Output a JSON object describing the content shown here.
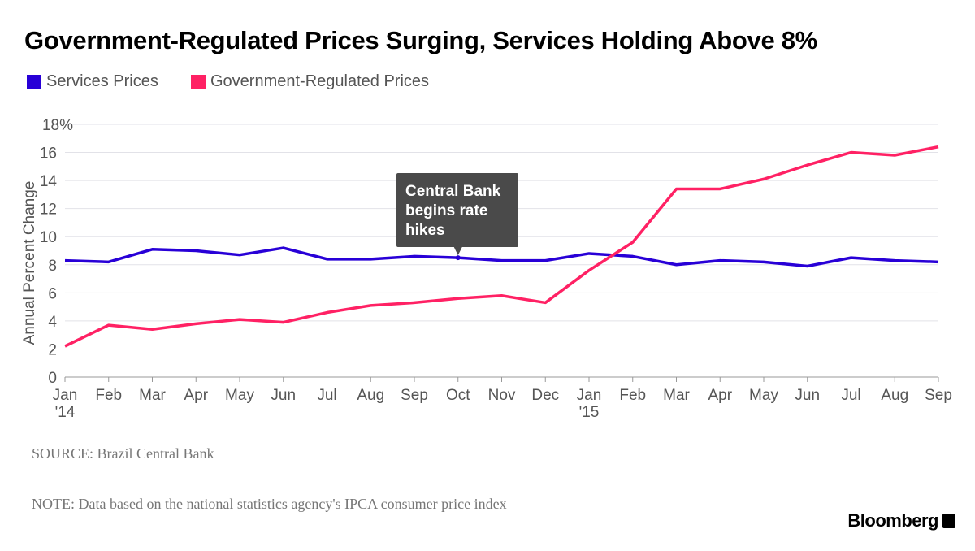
{
  "title": "Government-Regulated Prices Surging, Services Holding Above 8%",
  "source": "SOURCE: Brazil Central Bank",
  "note": "NOTE: Data based on the national statistics agency's IPCA consumer price index",
  "brand": "Bloomberg",
  "chart_data": {
    "type": "line",
    "title": "Government-Regulated Prices Surging, Services Holding Above 8%",
    "ylabel": "Annual Percent Change",
    "ylim": [
      0,
      18
    ],
    "yticks": [
      "0",
      "2",
      "4",
      "6",
      "8",
      "10",
      "12",
      "14",
      "16",
      "18%"
    ],
    "grid": true,
    "legend_placement": "top-left",
    "categories": [
      "Jan",
      "Feb",
      "Mar",
      "Apr",
      "May",
      "Jun",
      "Jul",
      "Aug",
      "Sep",
      "Oct",
      "Nov",
      "Dec",
      "Jan",
      "Feb",
      "Mar",
      "Apr",
      "May",
      "Jun",
      "Jul",
      "Aug",
      "Sep"
    ],
    "year_labels": {
      "0": "'14",
      "12": "'15"
    },
    "series": [
      {
        "name": "Services Prices",
        "color": "#2800d7",
        "values": [
          8.3,
          8.2,
          9.1,
          9.0,
          8.7,
          9.2,
          8.4,
          8.4,
          8.6,
          8.5,
          8.3,
          8.3,
          8.8,
          8.6,
          8.0,
          8.3,
          8.2,
          7.9,
          8.5,
          8.3,
          8.2
        ]
      },
      {
        "name": "Government-Regulated Prices",
        "color": "#ff2164",
        "values": [
          2.2,
          3.7,
          3.4,
          3.8,
          4.1,
          3.9,
          4.6,
          5.1,
          5.3,
          5.6,
          5.8,
          5.3,
          7.6,
          9.6,
          13.4,
          13.4,
          14.1,
          15.1,
          16.0,
          15.8,
          16.4
        ]
      }
    ],
    "annotation": {
      "text": [
        "Central Bank",
        "begins rate",
        "hikes"
      ],
      "index": 9,
      "series": 0
    }
  }
}
